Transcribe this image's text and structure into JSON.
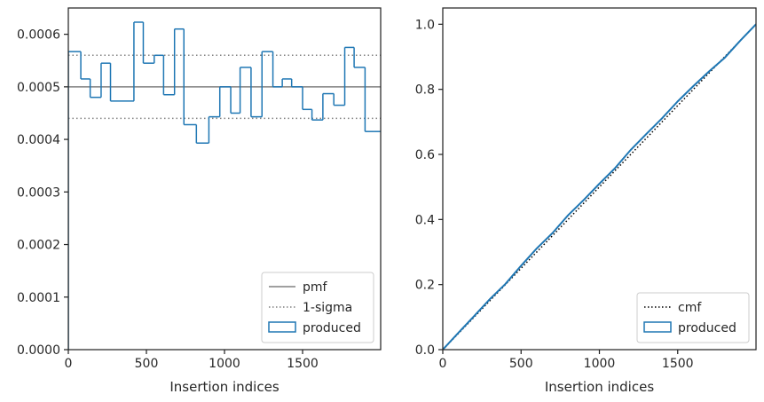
{
  "chart_data": [
    {
      "type": "step-histogram",
      "xlabel": "Insertion indices",
      "ylabel": "",
      "xlim": [
        0,
        2000
      ],
      "ylim": [
        0,
        0.00065
      ],
      "xticks": [
        0,
        500,
        1000,
        1500
      ],
      "xtick_labels": [
        "0",
        "500",
        "1000",
        "1500"
      ],
      "yticks": [
        0,
        0.0001,
        0.0002,
        0.0003,
        0.0004,
        0.0005,
        0.0006
      ],
      "ytick_labels": [
        "0.0000",
        "0.0001",
        "0.0002",
        "0.0003",
        "0.0004",
        "0.0005",
        "0.0006"
      ],
      "grid": false,
      "legend": {
        "placement": "lower-right",
        "entries": [
          {
            "label": "pmf",
            "style": "solid",
            "color": "#808080"
          },
          {
            "label": "1-sigma",
            "style": "dotted",
            "color": "#808080"
          },
          {
            "label": "produced",
            "style": "box",
            "color": "#1f77b4"
          }
        ]
      },
      "pmf": 0.0005,
      "sigma_band": [
        0.00044,
        0.00056
      ],
      "series": [
        {
          "name": "produced",
          "color": "#1f77b4",
          "bin_edges": [
            0,
            80,
            140,
            210,
            270,
            420,
            480,
            550,
            610,
            680,
            740,
            820,
            900,
            970,
            1040,
            1100,
            1170,
            1240,
            1310,
            1370,
            1430,
            1500,
            1560,
            1630,
            1700,
            1770,
            1830,
            1900,
            1960,
            2000
          ],
          "values": [
            0.000567,
            0.000515,
            0.00048,
            0.000545,
            0.000473,
            0.000623,
            0.000545,
            0.00056,
            0.000485,
            0.00061,
            0.000428,
            0.000393,
            0.000443,
            0.0005,
            0.00045,
            0.000537,
            0.000443,
            0.000567,
            0.0005,
            0.000515,
            0.0005,
            0.000457,
            0.000437,
            0.000487,
            0.000465,
            0.000575,
            0.000537,
            0.000415,
            0.000415
          ]
        }
      ]
    },
    {
      "type": "line",
      "xlabel": "Insertion indices",
      "ylabel": "",
      "xlim": [
        0,
        2000
      ],
      "ylim": [
        0,
        1.05
      ],
      "xticks": [
        0,
        500,
        1000,
        1500
      ],
      "xtick_labels": [
        "0",
        "500",
        "1000",
        "1500"
      ],
      "yticks": [
        0,
        0.2,
        0.4,
        0.6,
        0.8,
        1.0
      ],
      "ytick_labels": [
        "0.0",
        "0.2",
        "0.4",
        "0.6",
        "0.8",
        "1.0"
      ],
      "grid": false,
      "legend": {
        "placement": "lower-right",
        "entries": [
          {
            "label": "cmf",
            "style": "dotted",
            "color": "#000000"
          },
          {
            "label": "produced",
            "style": "box",
            "color": "#1f77b4"
          }
        ]
      },
      "series": [
        {
          "name": "cmf",
          "color": "#000000",
          "x": [
            0,
            2000
          ],
          "y": [
            0,
            1.0
          ]
        },
        {
          "name": "produced",
          "color": "#1f77b4",
          "x": [
            0,
            100,
            200,
            300,
            400,
            500,
            600,
            700,
            800,
            900,
            1000,
            1100,
            1200,
            1300,
            1400,
            1500,
            1600,
            1700,
            1800,
            1900,
            2000
          ],
          "y": [
            0,
            0.052,
            0.103,
            0.155,
            0.202,
            0.258,
            0.311,
            0.358,
            0.413,
            0.46,
            0.51,
            0.558,
            0.614,
            0.663,
            0.711,
            0.763,
            0.81,
            0.855,
            0.897,
            0.95,
            1.0
          ]
        }
      ]
    }
  ]
}
